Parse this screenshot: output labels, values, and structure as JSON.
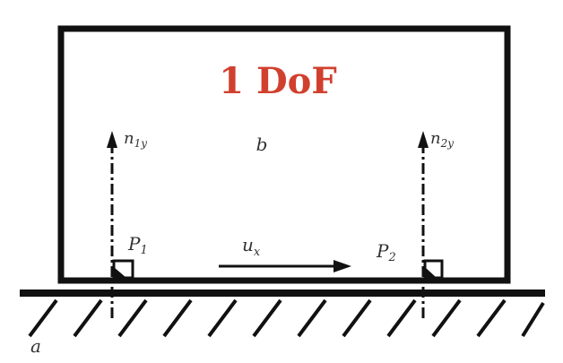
{
  "title": "1 DoF",
  "labels": {
    "body": "b",
    "ground": "a",
    "displacement": {
      "main": "u",
      "sub": "x"
    },
    "point1": {
      "main": "P",
      "sub": "1"
    },
    "point2": {
      "main": "P",
      "sub": "2"
    },
    "normal1": {
      "main": "n",
      "sub": "1y"
    },
    "normal2": {
      "main": "n",
      "sub": "2y"
    }
  },
  "colors": {
    "title": "#d1402f",
    "line": "#111111",
    "text": "#333333"
  }
}
